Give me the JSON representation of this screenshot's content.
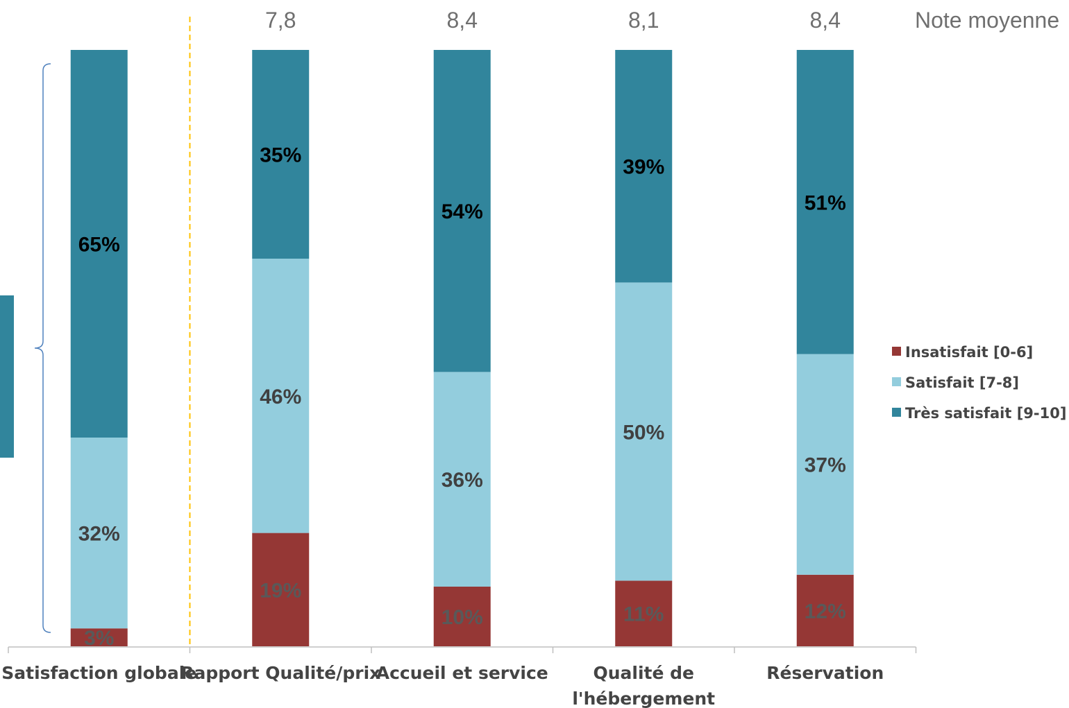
{
  "chart_data": {
    "type": "bar",
    "stacked": true,
    "categories": [
      "Satisfaction globale",
      "Rapport Qualité/prix",
      "Accueil et service",
      "Qualité de l'hébergement",
      "Réservation"
    ],
    "category_lines": [
      [
        "Satisfaction globale"
      ],
      [
        "Rapport Qualité/prix"
      ],
      [
        "Accueil et service"
      ],
      [
        "Qualité de",
        "l'hébergement"
      ],
      [
        "Réservation"
      ]
    ],
    "series": [
      {
        "name": "Insatisfait [0-6]",
        "color": "#953735",
        "label_color": "#595959",
        "values": [
          3,
          19,
          10,
          11,
          12
        ]
      },
      {
        "name": "Satisfait [7-8]",
        "color": "#93CDDD",
        "label_color": "#404040",
        "values": [
          32,
          46,
          36,
          50,
          37
        ]
      },
      {
        "name": "Très satisfait [9-10]",
        "color": "#31859C",
        "label_color": "#000000",
        "values": [
          65,
          35,
          54,
          39,
          51
        ]
      }
    ],
    "data_labels": [
      [
        "3%",
        "19%",
        "10%",
        "11%",
        "12%"
      ],
      [
        "32%",
        "46%",
        "36%",
        "50%",
        "37%"
      ],
      [
        "65%",
        "35%",
        "54%",
        "39%",
        "51%"
      ]
    ],
    "mean_scores": [
      "",
      "7,8",
      "8,4",
      "8,1",
      "8,4"
    ],
    "mean_score_title": "Note moyenne",
    "ylim": [
      0,
      100
    ],
    "legend_position": "right",
    "colors": {
      "separator": "#FFC000",
      "brace": "#4F81BD",
      "side_box": "#31859C",
      "axis": "#BFBFBF"
    }
  }
}
